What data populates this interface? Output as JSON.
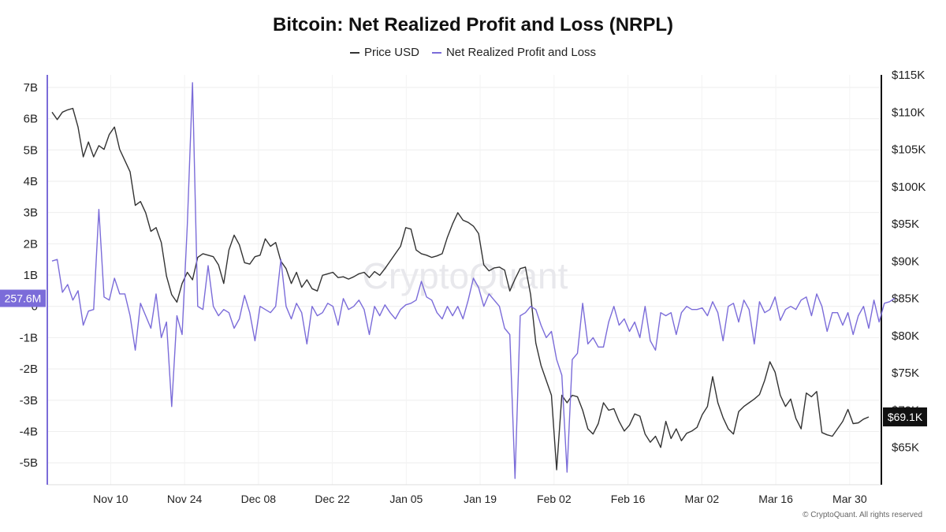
{
  "chart_data": {
    "type": "line",
    "title": "Bitcoin: Net Realized Profit and Loss (NRPL)",
    "left_axis_ticks": [
      "7B",
      "6B",
      "5B",
      "4B",
      "3B",
      "2B",
      "1B",
      "0",
      "-1B",
      "-2B",
      "-3B",
      "-4B",
      "-5B"
    ],
    "right_axis_ticks": [
      "$115K",
      "$110K",
      "$105K",
      "$100K",
      "$95K",
      "$90K",
      "$85K",
      "$80K",
      "$75K",
      "$70K",
      "$65K"
    ],
    "x_tick_labels": [
      "Nov 10",
      "Nov 24",
      "Dec 08",
      "Dec 22",
      "Jan 05",
      "Jan 19",
      "Feb 02",
      "Feb 16",
      "Mar 02",
      "Mar 16",
      "Mar 30"
    ],
    "left_ylim": [
      -5.7,
      7.4
    ],
    "right_ylim": [
      60000,
      115000
    ],
    "x_range": [
      "Oct 29",
      "Apr 05"
    ],
    "series": [
      {
        "name": "Price USD",
        "axis": "right",
        "color": "#333333",
        "values": [
          110000,
          109000,
          110000,
          110300,
          110500,
          108000,
          104000,
          106000,
          104000,
          105500,
          105000,
          107000,
          108000,
          105000,
          103500,
          102000,
          97500,
          98000,
          96500,
          94000,
          94500,
          92500,
          88000,
          85500,
          84500,
          87000,
          88500,
          87500,
          90500,
          91000,
          90800,
          90600,
          89500,
          87000,
          91500,
          93500,
          92200,
          89800,
          89600,
          90600,
          90800,
          93000,
          92000,
          92500,
          90000,
          89000,
          87000,
          88500,
          86500,
          87500,
          86300,
          86000,
          88100,
          88300,
          88500,
          87800,
          87900,
          87600,
          87900,
          88300,
          88500,
          87800,
          88600,
          88100,
          89000,
          90000,
          91000,
          92000,
          94500,
          94300,
          91500,
          91000,
          90800,
          90500,
          90700,
          91000,
          93200,
          95000,
          96500,
          95500,
          95200,
          94700,
          93700,
          89500,
          88700,
          89100,
          89200,
          88800,
          86000,
          87600,
          89000,
          89200,
          85500,
          79000,
          76000,
          74000,
          72000,
          62000,
          72000,
          71000,
          72000,
          71800,
          70000,
          67500,
          66800,
          68200,
          71000,
          70000,
          70200,
          68500,
          67200,
          68000,
          69500,
          69200,
          66800,
          65700,
          66500,
          65000,
          68500,
          66200,
          67500,
          65900,
          66900,
          67200,
          67700,
          69400,
          70500,
          74500,
          71000,
          69000,
          67500,
          66800,
          69800,
          70500,
          71000,
          71500,
          72100,
          74000,
          76500,
          75100,
          72000,
          70500,
          71500,
          68900,
          67500,
          72300,
          71800,
          72500,
          67000,
          66700,
          66500,
          67500,
          68500,
          70100,
          68200,
          68300,
          68800,
          69100
        ]
      },
      {
        "name": "Net Realized Profit and Loss",
        "axis": "left",
        "color": "#7B6CD9",
        "values": [
          1.45,
          1.5,
          0.45,
          0.7,
          0.2,
          0.5,
          -0.6,
          -0.15,
          -0.1,
          3.1,
          0.3,
          0.2,
          0.9,
          0.4,
          0.4,
          -0.3,
          -1.4,
          0.1,
          -0.3,
          -0.7,
          0.4,
          -1.0,
          -0.5,
          -3.2,
          -0.3,
          -0.9,
          2.6,
          7.15,
          0.0,
          -0.1,
          1.3,
          0.0,
          -0.3,
          -0.1,
          -0.2,
          -0.7,
          -0.4,
          0.35,
          -0.2,
          -1.1,
          0.0,
          -0.1,
          -0.2,
          0.0,
          1.5,
          0.0,
          -0.4,
          0.1,
          -0.2,
          -1.2,
          0.0,
          -0.3,
          -0.2,
          0.1,
          0.0,
          -0.6,
          0.25,
          -0.1,
          0.0,
          0.2,
          -0.1,
          -0.9,
          0.0,
          -0.3,
          0.05,
          -0.2,
          -0.4,
          -0.1,
          0.05,
          0.1,
          0.2,
          0.8,
          0.3,
          0.2,
          -0.2,
          -0.4,
          0.0,
          -0.3,
          0.0,
          -0.4,
          0.2,
          0.9,
          0.6,
          0.0,
          0.4,
          0.2,
          0.0,
          -0.7,
          -0.9,
          -5.5,
          -0.3,
          -0.2,
          0.0,
          -0.1,
          -0.6,
          -1.0,
          -0.8,
          -1.7,
          -2.2,
          -5.3,
          -1.7,
          -1.5,
          0.1,
          -1.2,
          -1.0,
          -1.3,
          -1.3,
          -0.5,
          0.0,
          -0.6,
          -0.4,
          -0.8,
          -0.5,
          -1.0,
          0.0,
          -1.1,
          -1.4,
          -0.2,
          -0.3,
          -0.2,
          -0.9,
          -0.2,
          0.0,
          -0.1,
          -0.1,
          -0.05,
          -0.3,
          0.15,
          -0.2,
          -1.1,
          0.0,
          0.1,
          -0.5,
          0.2,
          -0.1,
          -1.2,
          0.15,
          -0.2,
          -0.1,
          0.3,
          -0.45,
          -0.1,
          0.0,
          -0.1,
          0.2,
          0.3,
          -0.3,
          0.4,
          0.0,
          -0.8,
          -0.2,
          -0.2,
          -0.6,
          -0.2,
          -0.9,
          -0.3,
          0.0,
          -0.7,
          0.2,
          -0.5,
          0.1,
          0.15,
          0.26
        ]
      }
    ],
    "left_current_badge": "257.6M",
    "right_current_badge": "$69.1K",
    "watermark": "CryptoQuant",
    "footer": "© CryptoQuant. All rights reserved",
    "grid": true,
    "legend_position": "top-center"
  }
}
